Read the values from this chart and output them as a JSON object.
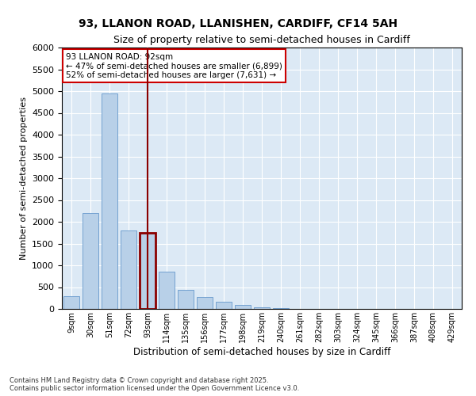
{
  "title1": "93, LLANON ROAD, LLANISHEN, CARDIFF, CF14 5AH",
  "title2": "Size of property relative to semi-detached houses in Cardiff",
  "xlabel": "Distribution of semi-detached houses by size in Cardiff",
  "ylabel": "Number of semi-detached properties",
  "bar_labels": [
    "9sqm",
    "30sqm",
    "51sqm",
    "72sqm",
    "93sqm",
    "114sqm",
    "135sqm",
    "156sqm",
    "177sqm",
    "198sqm",
    "219sqm",
    "240sqm",
    "261sqm",
    "282sqm",
    "303sqm",
    "324sqm",
    "345sqm",
    "366sqm",
    "387sqm",
    "408sqm",
    "429sqm"
  ],
  "bar_heights": [
    300,
    2200,
    4950,
    1800,
    1750,
    850,
    430,
    270,
    155,
    90,
    45,
    10,
    0,
    0,
    0,
    0,
    0,
    0,
    0,
    0,
    0
  ],
  "bar_color": "#b8d0e8",
  "bar_edge_color": "#6699cc",
  "highlight_bar_index": 4,
  "highlight_color": "#8b0000",
  "annotation_title": "93 LLANON ROAD: 92sqm",
  "annotation_line1": "← 47% of semi-detached houses are smaller (6,899)",
  "annotation_line2": "52% of semi-detached houses are larger (7,631) →",
  "annotation_box_color": "#cc0000",
  "ylim": [
    0,
    6000
  ],
  "yticks": [
    0,
    500,
    1000,
    1500,
    2000,
    2500,
    3000,
    3500,
    4000,
    4500,
    5000,
    5500,
    6000
  ],
  "footer1": "Contains HM Land Registry data © Crown copyright and database right 2025.",
  "footer2": "Contains public sector information licensed under the Open Government Licence v3.0.",
  "bg_color": "#dce9f5",
  "grid_color": "#ffffff",
  "fig_bg_color": "#ffffff",
  "title_fontsize": 10,
  "subtitle_fontsize": 9
}
